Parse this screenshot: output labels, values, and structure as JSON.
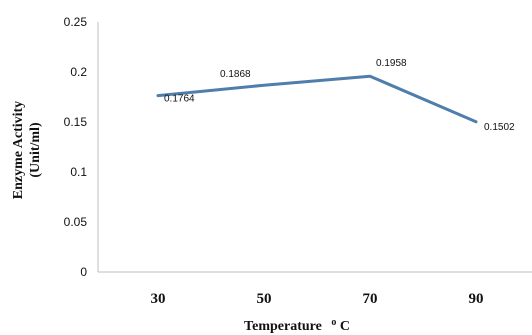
{
  "chart_data": {
    "type": "line",
    "x": [
      "30",
      "50",
      "70",
      "90"
    ],
    "series": [
      {
        "values": [
          0.1764,
          0.1868,
          0.1958,
          0.1502
        ]
      }
    ],
    "data_labels": [
      "0.1764",
      "0.1868",
      "0.1958",
      "0.1502"
    ],
    "y_ticks": [
      "0",
      "0.05",
      "0.1",
      "0.15",
      "0.2",
      "0.25"
    ],
    "ylim": [
      0,
      0.25
    ],
    "xlabel": {
      "main": "Temperature",
      "unit_deg": "o",
      "unit_c": "C"
    },
    "ylabel": {
      "line1": "Enzyme Activity",
      "line2": "(Unit/ml)"
    },
    "line_color": "#4f7eab",
    "grid": false,
    "legend": "none"
  }
}
